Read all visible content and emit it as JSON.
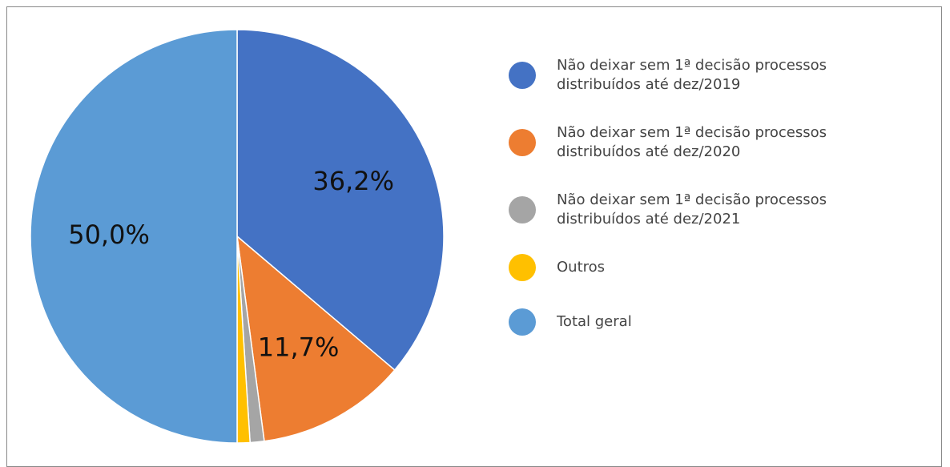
{
  "chart_data": {
    "type": "pie",
    "series": [
      {
        "name": "Não deixar sem 1ª decisão processos distribuídos até dez/2019",
        "color": "#4472c4"
      },
      {
        "name": "Não deixar sem 1ª decisão processos distribuídos até dez/2020",
        "color": "#ed7d31"
      },
      {
        "name": "Não deixar sem 1ª decisão processos distribuídos até dez/2021",
        "color": "#a5a5a5"
      },
      {
        "name": "Outros",
        "color": "#ffc000"
      },
      {
        "name": "Total geral",
        "color": "#5b9bd5"
      }
    ],
    "values": [
      36.2,
      11.7,
      1.1,
      1.0,
      50.0
    ],
    "value_labels": [
      "36,2%",
      "11,7%",
      null,
      null,
      "50,0%"
    ],
    "legend": "right"
  }
}
